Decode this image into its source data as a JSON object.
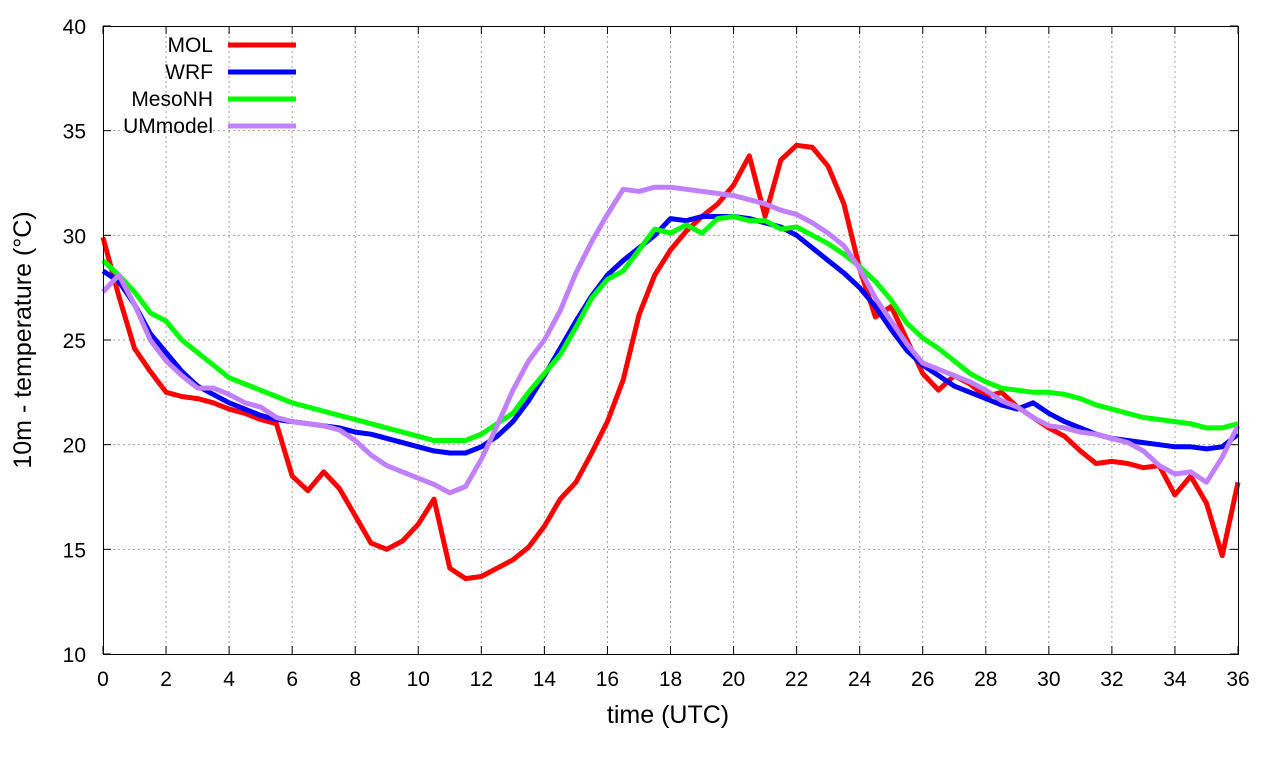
{
  "chart_data": {
    "type": "line",
    "xlabel": "time (UTC)",
    "ylabel": "10m - temperature (°C)",
    "xlim": [
      0,
      36
    ],
    "ylim": [
      10,
      40
    ],
    "xticks": [
      0,
      2,
      4,
      6,
      8,
      10,
      12,
      14,
      16,
      18,
      20,
      22,
      24,
      26,
      28,
      30,
      32,
      34,
      36
    ],
    "yticks": [
      10,
      15,
      20,
      25,
      30,
      35,
      40
    ],
    "grid": true,
    "legend_position": "top-left",
    "series": [
      {
        "name": "MOL",
        "color": "#ff0000",
        "x": [
          0,
          0.5,
          1,
          1.5,
          2,
          2.5,
          3,
          3.5,
          4,
          4.5,
          5,
          5.5,
          6,
          6.5,
          7,
          7.5,
          8,
          8.5,
          9,
          9.5,
          10,
          10.5,
          11,
          11.5,
          12,
          12.5,
          13,
          13.5,
          14,
          14.5,
          15,
          15.5,
          16,
          16.5,
          17,
          17.5,
          18,
          18.5,
          19,
          19.5,
          20,
          20.5,
          21,
          21.5,
          22,
          22.5,
          23,
          23.5,
          24,
          24.5,
          25,
          25.5,
          26,
          26.5,
          27,
          27.5,
          28,
          28.5,
          29,
          29.5,
          30,
          30.5,
          31,
          31.5,
          32,
          32.5,
          33,
          33.5,
          34,
          34.5,
          35,
          35.5,
          36
        ],
        "values": [
          29.9,
          27.1,
          24.6,
          23.5,
          22.5,
          22.3,
          22.2,
          22.0,
          21.7,
          21.5,
          21.2,
          21.0,
          18.5,
          17.8,
          18.7,
          17.9,
          16.6,
          15.3,
          15.0,
          15.4,
          16.2,
          17.4,
          14.1,
          13.6,
          13.7,
          14.1,
          14.5,
          15.1,
          16.1,
          17.4,
          18.2,
          19.6,
          21.1,
          23.1,
          26.2,
          28.1,
          29.3,
          30.2,
          30.9,
          31.5,
          32.4,
          33.8,
          30.9,
          33.6,
          34.3,
          34.2,
          33.3,
          31.5,
          28.4,
          26.1,
          26.6,
          25.0,
          23.4,
          22.6,
          23.3,
          22.9,
          22.3,
          22.5,
          21.8,
          21.3,
          20.8,
          20.4,
          19.7,
          19.1,
          19.2,
          19.1,
          18.9,
          19.0,
          17.6,
          18.5,
          17.2,
          14.7,
          18.2
        ]
      },
      {
        "name": "WRF",
        "color": "#0000ff",
        "x": [
          0,
          0.5,
          1,
          1.5,
          2,
          2.5,
          3,
          3.5,
          4,
          4.5,
          5,
          5.5,
          6,
          6.5,
          7,
          7.5,
          8,
          8.5,
          9,
          9.5,
          10,
          10.5,
          11,
          11.5,
          12,
          12.5,
          13,
          13.5,
          14,
          14.5,
          15,
          15.5,
          16,
          16.5,
          17,
          17.5,
          18,
          18.5,
          19,
          19.5,
          20,
          20.5,
          21,
          21.5,
          22,
          22.5,
          23,
          23.5,
          24,
          24.5,
          25,
          25.5,
          26,
          26.5,
          27,
          27.5,
          28,
          28.5,
          29,
          29.5,
          30,
          30.5,
          31,
          31.5,
          32,
          32.5,
          33,
          33.5,
          34,
          34.5,
          35,
          35.5,
          36
        ],
        "values": [
          28.3,
          27.8,
          26.7,
          25.3,
          24.4,
          23.5,
          22.8,
          22.4,
          22.0,
          21.7,
          21.4,
          21.2,
          21.1,
          21.0,
          20.9,
          20.8,
          20.6,
          20.5,
          20.3,
          20.1,
          19.9,
          19.7,
          19.6,
          19.6,
          19.9,
          20.4,
          21.1,
          22.1,
          23.3,
          24.6,
          25.9,
          27.1,
          28.1,
          28.8,
          29.4,
          30.0,
          30.8,
          30.7,
          30.9,
          30.9,
          30.9,
          30.8,
          30.6,
          30.4,
          30.0,
          29.4,
          28.8,
          28.2,
          27.5,
          26.6,
          25.5,
          24.5,
          23.8,
          23.3,
          22.8,
          22.5,
          22.2,
          21.9,
          21.7,
          22.0,
          21.5,
          21.1,
          20.8,
          20.5,
          20.3,
          20.2,
          20.1,
          20.0,
          19.9,
          19.9,
          19.8,
          19.9,
          20.5
        ]
      },
      {
        "name": "MesoNH",
        "color": "#00ff00",
        "x": [
          0,
          0.5,
          1,
          1.5,
          2,
          2.5,
          3,
          3.5,
          4,
          4.5,
          5,
          5.5,
          6,
          6.5,
          7,
          7.5,
          8,
          8.5,
          9,
          9.5,
          10,
          10.5,
          11,
          11.5,
          12,
          12.5,
          13,
          13.5,
          14,
          14.5,
          15,
          15.5,
          16,
          16.5,
          17,
          17.5,
          18,
          18.5,
          19,
          19.5,
          20,
          20.5,
          21,
          21.5,
          22,
          22.5,
          23,
          23.5,
          24,
          24.5,
          25,
          25.5,
          26,
          26.5,
          27,
          27.5,
          28,
          28.5,
          29,
          29.5,
          30,
          30.5,
          31,
          31.5,
          32,
          32.5,
          33,
          33.5,
          34,
          34.5,
          35,
          35.5,
          36
        ],
        "values": [
          28.8,
          28.1,
          27.3,
          26.3,
          25.9,
          25.0,
          24.4,
          23.8,
          23.2,
          22.9,
          22.6,
          22.3,
          22.0,
          21.8,
          21.6,
          21.4,
          21.2,
          21.0,
          20.8,
          20.6,
          20.4,
          20.2,
          20.2,
          20.2,
          20.5,
          21.0,
          21.5,
          22.5,
          23.4,
          24.3,
          25.6,
          27.0,
          27.9,
          28.3,
          29.3,
          30.3,
          30.1,
          30.5,
          30.1,
          30.8,
          30.9,
          30.7,
          30.7,
          30.3,
          30.4,
          30.0,
          29.6,
          29.1,
          28.5,
          27.8,
          26.9,
          25.8,
          25.1,
          24.6,
          24.0,
          23.4,
          23.0,
          22.7,
          22.6,
          22.5,
          22.5,
          22.4,
          22.2,
          21.9,
          21.7,
          21.5,
          21.3,
          21.2,
          21.1,
          21.0,
          20.8,
          20.8,
          21.0
        ]
      },
      {
        "name": "UMmodel",
        "color": "#c080ff",
        "x": [
          0,
          0.5,
          1,
          1.5,
          2,
          2.5,
          3,
          3.5,
          4,
          4.5,
          5,
          5.5,
          6,
          6.5,
          7,
          7.5,
          8,
          8.5,
          9,
          9.5,
          10,
          10.5,
          11,
          11.5,
          12,
          12.5,
          13,
          13.5,
          14,
          14.5,
          15,
          15.5,
          16,
          16.5,
          17,
          17.5,
          18,
          18.5,
          19,
          19.5,
          20,
          20.5,
          21,
          21.5,
          22,
          22.5,
          23,
          23.5,
          24,
          24.5,
          25,
          25.5,
          26,
          26.5,
          27,
          27.5,
          28,
          28.5,
          29,
          29.5,
          30,
          30.5,
          31,
          31.5,
          32,
          32.5,
          33,
          33.5,
          34,
          34.5,
          35,
          35.5,
          36
        ],
        "values": [
          27.3,
          28.1,
          26.7,
          25.0,
          24.0,
          23.3,
          22.7,
          22.7,
          22.4,
          22.0,
          21.8,
          21.3,
          21.1,
          21.0,
          20.9,
          20.7,
          20.2,
          19.5,
          19.0,
          18.7,
          18.4,
          18.1,
          17.7,
          18.0,
          19.3,
          20.9,
          22.6,
          24.0,
          25.0,
          26.4,
          28.2,
          29.7,
          31.0,
          32.2,
          32.1,
          32.3,
          32.3,
          32.2,
          32.1,
          32.0,
          31.9,
          31.7,
          31.5,
          31.2,
          31.0,
          30.6,
          30.1,
          29.5,
          28.4,
          27.0,
          25.9,
          24.8,
          23.9,
          23.6,
          23.3,
          23.0,
          22.6,
          22.1,
          21.8,
          21.3,
          20.9,
          20.8,
          20.6,
          20.5,
          20.3,
          20.1,
          19.7,
          19.0,
          18.6,
          18.7,
          18.2,
          19.4,
          20.9
        ]
      }
    ]
  }
}
